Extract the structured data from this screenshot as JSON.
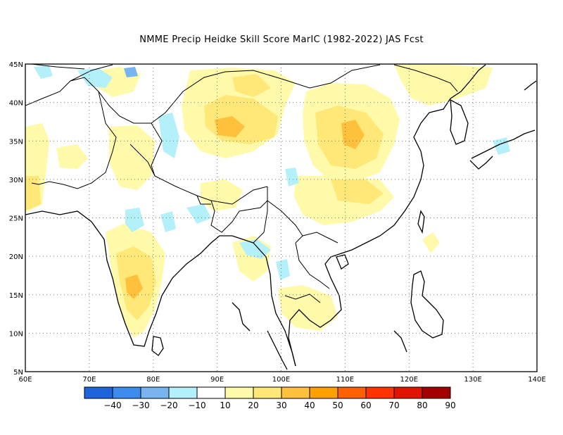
{
  "title": "NMME Precip Heidke Skill Score MarIC (1982-2022) JAS Fcst",
  "map": {
    "lon_range": [
      60,
      140
    ],
    "lat_range": [
      5,
      45
    ],
    "lon_ticks": [
      "60E",
      "70E",
      "80E",
      "90E",
      "100E",
      "110E",
      "120E",
      "130E",
      "140E"
    ],
    "lat_ticks": [
      "5N",
      "10N",
      "15N",
      "20N",
      "25N",
      "30N",
      "35N",
      "40N",
      "45N"
    ],
    "grid": "dotted"
  },
  "colorbar": {
    "labels": [
      "−40",
      "−30",
      "−20",
      "−10",
      "10",
      "20",
      "30",
      "40",
      "50",
      "60",
      "70",
      "80",
      "90"
    ],
    "colors": [
      "#1e64dc",
      "#3c8cf0",
      "#78b4f0",
      "#b4f0fa",
      "#ffffff",
      "#fffaaa",
      "#ffe878",
      "#ffc03c",
      "#ffa000",
      "#ff6000",
      "#ff3200",
      "#e11400",
      "#a50000"
    ]
  }
}
